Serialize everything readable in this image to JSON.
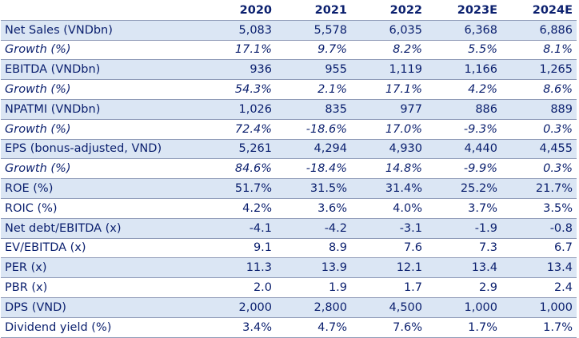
{
  "table": {
    "headers": [
      "",
      "2020",
      "2021",
      "2022",
      "2023E",
      "2024E"
    ],
    "rows": [
      {
        "label": "Net Sales (VNDbn)",
        "values": [
          "5,083",
          "5,578",
          "6,035",
          "6,368",
          "6,886"
        ],
        "shaded": true,
        "italic": false
      },
      {
        "label": "Growth (%)",
        "values": [
          "17.1%",
          "9.7%",
          "8.2%",
          "5.5%",
          "8.1%"
        ],
        "shaded": false,
        "italic": true
      },
      {
        "label": "EBITDA (VNDbn)",
        "values": [
          "936",
          "955",
          "1,119",
          "1,166",
          "1,265"
        ],
        "shaded": true,
        "italic": false
      },
      {
        "label": "Growth (%)",
        "values": [
          "54.3%",
          "2.1%",
          "17.1%",
          "4.2%",
          "8.6%"
        ],
        "shaded": false,
        "italic": true
      },
      {
        "label": "NPATMI (VNDbn)",
        "values": [
          "1,026",
          "835",
          "977",
          "886",
          "889"
        ],
        "shaded": true,
        "italic": false
      },
      {
        "label": "Growth (%)",
        "values": [
          "72.4%",
          "-18.6%",
          "17.0%",
          "-9.3%",
          "0.3%"
        ],
        "shaded": false,
        "italic": true
      },
      {
        "label": "EPS (bonus-adjusted, VND)",
        "values": [
          "5,261",
          "4,294",
          "4,930",
          "4,440",
          "4,455"
        ],
        "shaded": true,
        "italic": false
      },
      {
        "label": "Growth (%)",
        "values": [
          "84.6%",
          "-18.4%",
          "14.8%",
          "-9.9%",
          "0.3%"
        ],
        "shaded": false,
        "italic": true
      },
      {
        "label": "ROE (%)",
        "values": [
          "51.7%",
          "31.5%",
          "31.4%",
          "25.2%",
          "21.7%"
        ],
        "shaded": true,
        "italic": false
      },
      {
        "label": "ROIC (%)",
        "values": [
          "4.2%",
          "3.6%",
          "4.0%",
          "3.7%",
          "3.5%"
        ],
        "shaded": false,
        "italic": false
      },
      {
        "label": "Net debt/EBITDA (x)",
        "values": [
          "-4.1",
          "-4.2",
          "-3.1",
          "-1.9",
          "-0.8"
        ],
        "shaded": true,
        "italic": false
      },
      {
        "label": "EV/EBITDA (x)",
        "values": [
          "9.1",
          "8.9",
          "7.6",
          "7.3",
          "6.7"
        ],
        "shaded": false,
        "italic": false
      },
      {
        "label": "PER (x)",
        "values": [
          "11.3",
          "13.9",
          "12.1",
          "13.4",
          "13.4"
        ],
        "shaded": true,
        "italic": false
      },
      {
        "label": "PBR (x)",
        "values": [
          "2.0",
          "1.9",
          "1.7",
          "2.9",
          "2.4"
        ],
        "shaded": false,
        "italic": false
      },
      {
        "label": "DPS (VND)",
        "values": [
          "2,000",
          "2,800",
          "4,500",
          "1,000",
          "1,000"
        ],
        "shaded": true,
        "italic": false
      },
      {
        "label": "Dividend yield (%)",
        "values": [
          "3.4%",
          "4.7%",
          "7.6%",
          "1.7%",
          "1.7%"
        ],
        "shaded": false,
        "italic": false
      }
    ]
  }
}
